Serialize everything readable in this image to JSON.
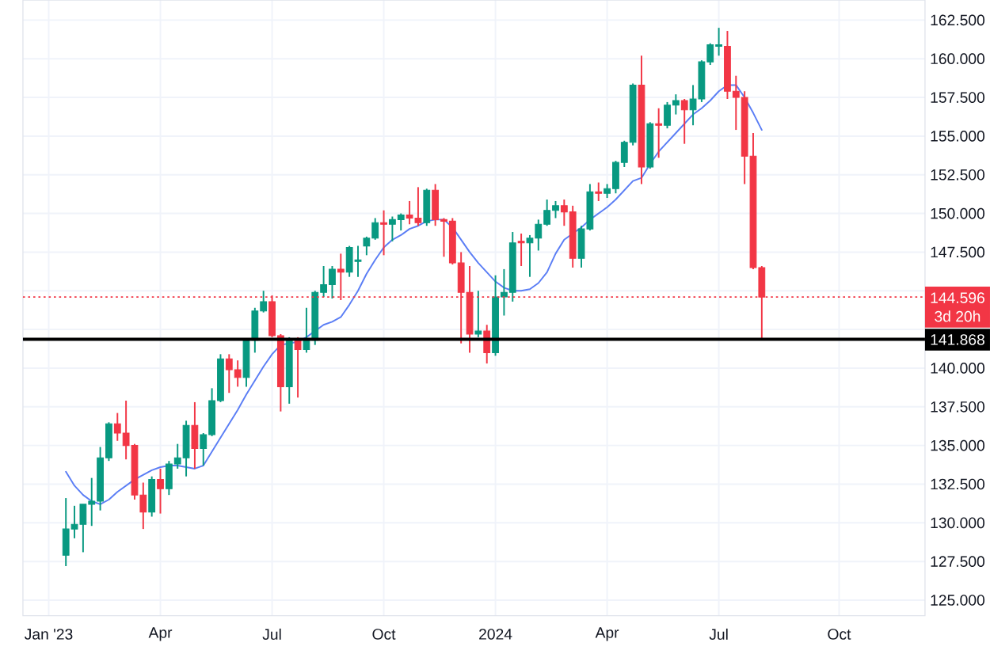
{
  "chart_data": {
    "type": "candlestick",
    "x": [
      "2023-01-16",
      "2023-01-23",
      "2023-01-30",
      "2023-02-06",
      "2023-02-13",
      "2023-02-20",
      "2023-02-27",
      "2023-03-06",
      "2023-03-13",
      "2023-03-20",
      "2023-03-27",
      "2023-04-03",
      "2023-04-10",
      "2023-04-17",
      "2023-04-24",
      "2023-05-01",
      "2023-05-08",
      "2023-05-15",
      "2023-05-22",
      "2023-05-29",
      "2023-06-05",
      "2023-06-12",
      "2023-06-19",
      "2023-06-26",
      "2023-07-03",
      "2023-07-10",
      "2023-07-17",
      "2023-07-24",
      "2023-07-31",
      "2023-08-07",
      "2023-08-14",
      "2023-08-21",
      "2023-08-28",
      "2023-09-04",
      "2023-09-11",
      "2023-09-18",
      "2023-09-25",
      "2023-10-02",
      "2023-10-09",
      "2023-10-16",
      "2023-10-23",
      "2023-10-30",
      "2023-11-06",
      "2023-11-13",
      "2023-11-20",
      "2023-11-27",
      "2023-12-04",
      "2023-12-11",
      "2023-12-18",
      "2023-12-25",
      "2024-01-01",
      "2024-01-08",
      "2024-01-15",
      "2024-01-22",
      "2024-01-29",
      "2024-02-05",
      "2024-02-12",
      "2024-02-19",
      "2024-02-26",
      "2024-03-04",
      "2024-03-11",
      "2024-03-18",
      "2024-03-25",
      "2024-04-01",
      "2024-04-08",
      "2024-04-15",
      "2024-04-22",
      "2024-04-29",
      "2024-05-06",
      "2024-05-13",
      "2024-05-20",
      "2024-05-27",
      "2024-06-03",
      "2024-06-10",
      "2024-06-17",
      "2024-06-24",
      "2024-07-01",
      "2024-07-08",
      "2024-07-15",
      "2024-07-22",
      "2024-07-29",
      "2024-08-05"
    ],
    "ohlc": [
      [
        127.9,
        131.6,
        127.2,
        129.6
      ],
      [
        129.6,
        131.1,
        129.0,
        129.9
      ],
      [
        129.9,
        131.2,
        128.1,
        131.2
      ],
      [
        131.2,
        132.9,
        129.8,
        131.4
      ],
      [
        131.4,
        134.9,
        130.8,
        134.2
      ],
      [
        134.2,
        136.5,
        134.0,
        136.4
      ],
      [
        136.4,
        137.1,
        135.3,
        135.8
      ],
      [
        135.8,
        137.9,
        134.1,
        135.0
      ],
      [
        135.0,
        135.1,
        131.5,
        131.8
      ],
      [
        131.8,
        132.6,
        129.6,
        130.7
      ],
      [
        130.7,
        133.0,
        130.4,
        132.8
      ],
      [
        132.8,
        133.5,
        130.6,
        132.2
      ],
      [
        132.2,
        134.0,
        131.8,
        133.8
      ],
      [
        133.8,
        135.1,
        133.5,
        134.2
      ],
      [
        134.2,
        136.6,
        133.0,
        136.3
      ],
      [
        136.3,
        137.8,
        133.5,
        134.8
      ],
      [
        134.8,
        135.8,
        133.7,
        135.7
      ],
      [
        135.7,
        138.7,
        135.6,
        137.9
      ],
      [
        137.9,
        140.9,
        137.8,
        140.6
      ],
      [
        140.6,
        140.9,
        138.4,
        139.9
      ],
      [
        139.9,
        140.5,
        138.8,
        139.4
      ],
      [
        139.4,
        141.9,
        138.8,
        141.8
      ],
      [
        141.8,
        143.9,
        141.0,
        143.7
      ],
      [
        143.7,
        145.0,
        143.6,
        144.3
      ],
      [
        144.3,
        144.7,
        142.0,
        142.1
      ],
      [
        142.1,
        142.2,
        137.2,
        138.8
      ],
      [
        138.8,
        142.0,
        137.7,
        141.8
      ],
      [
        141.8,
        142.0,
        138.1,
        141.2
      ],
      [
        141.2,
        143.9,
        141.0,
        141.8
      ],
      [
        141.8,
        145.0,
        141.5,
        144.9
      ],
      [
        144.9,
        146.6,
        144.6,
        145.4
      ],
      [
        145.4,
        146.6,
        144.5,
        146.4
      ],
      [
        146.4,
        147.4,
        144.4,
        146.2
      ],
      [
        146.2,
        147.9,
        145.9,
        147.8
      ],
      [
        146.9,
        147.9,
        145.9,
        147.0
      ],
      [
        147.9,
        148.5,
        147.3,
        148.4
      ],
      [
        148.4,
        149.7,
        148.3,
        149.4
      ],
      [
        149.4,
        150.2,
        147.3,
        149.3
      ],
      [
        149.3,
        149.8,
        148.2,
        149.6
      ],
      [
        149.6,
        150.0,
        148.9,
        149.9
      ],
      [
        149.9,
        150.8,
        149.3,
        149.7
      ],
      [
        149.7,
        151.7,
        149.2,
        149.4
      ],
      [
        149.4,
        151.6,
        149.2,
        151.5
      ],
      [
        151.5,
        151.9,
        149.2,
        149.6
      ],
      [
        149.6,
        149.7,
        147.2,
        149.5
      ],
      [
        149.5,
        149.7,
        146.7,
        146.8
      ],
      [
        146.8,
        147.5,
        141.6,
        144.9
      ],
      [
        144.9,
        146.6,
        141.0,
        142.2
      ],
      [
        142.2,
        145.0,
        142.0,
        142.4
      ],
      [
        142.4,
        142.8,
        140.3,
        141.0
      ],
      [
        141.0,
        146.0,
        140.8,
        144.6
      ],
      [
        144.6,
        146.4,
        143.4,
        144.9
      ],
      [
        144.9,
        148.8,
        144.3,
        148.1
      ],
      [
        148.2,
        148.7,
        146.6,
        148.1
      ],
      [
        148.1,
        148.6,
        145.9,
        148.4
      ],
      [
        148.4,
        149.6,
        147.6,
        149.3
      ],
      [
        149.3,
        150.9,
        149.2,
        150.2
      ],
      [
        150.2,
        150.8,
        149.7,
        150.5
      ],
      [
        150.5,
        150.9,
        149.2,
        150.1
      ],
      [
        150.1,
        150.5,
        146.5,
        147.1
      ],
      [
        147.1,
        149.2,
        146.5,
        149.0
      ],
      [
        149.0,
        151.9,
        148.9,
        151.4
      ],
      [
        151.4,
        152.0,
        150.8,
        151.3
      ],
      [
        151.3,
        151.9,
        151.0,
        151.6
      ],
      [
        151.6,
        153.4,
        151.3,
        153.3
      ],
      [
        153.3,
        154.7,
        153.0,
        154.6
      ],
      [
        154.6,
        158.4,
        154.4,
        158.3
      ],
      [
        158.3,
        160.2,
        151.9,
        153.0
      ],
      [
        153.0,
        155.9,
        152.9,
        155.8
      ],
      [
        155.8,
        156.8,
        153.6,
        155.7
      ],
      [
        155.7,
        157.2,
        155.5,
        157.0
      ],
      [
        157.0,
        157.7,
        156.4,
        157.3
      ],
      [
        157.3,
        157.4,
        154.5,
        156.7
      ],
      [
        156.7,
        158.3,
        155.7,
        157.4
      ],
      [
        157.4,
        159.9,
        157.2,
        159.8
      ],
      [
        159.8,
        161.0,
        159.6,
        160.9
      ],
      [
        160.8,
        162.0,
        160.2,
        160.9
      ],
      [
        160.8,
        161.8,
        157.4,
        157.9
      ],
      [
        157.9,
        158.9,
        155.4,
        157.5
      ],
      [
        157.5,
        157.9,
        151.9,
        153.7
      ],
      [
        153.7,
        155.2,
        146.4,
        146.5
      ],
      [
        146.5,
        146.6,
        141.9,
        144.596
      ]
    ],
    "colors": [
      "#089981",
      "#089981",
      "#089981",
      "#089981",
      "#089981",
      "#089981",
      "#f23645",
      "#f23645",
      "#f23645",
      "#f23645",
      "#089981",
      "#f23645",
      "#089981",
      "#089981",
      "#089981",
      "#f23645",
      "#089981",
      "#089981",
      "#089981",
      "#f23645",
      "#f23645",
      "#089981",
      "#089981",
      "#089981",
      "#f23645",
      "#f23645",
      "#089981",
      "#f23645",
      "#089981",
      "#089981",
      "#089981",
      "#089981",
      "#f23645",
      "#089981",
      "#089981",
      "#089981",
      "#089981",
      "#f23645",
      "#089981",
      "#089981",
      "#f23645",
      "#f23645",
      "#089981",
      "#f23645",
      "#f23645",
      "#f23645",
      "#f23645",
      "#f23645",
      "#089981",
      "#f23645",
      "#089981",
      "#089981",
      "#089981",
      "#f23645",
      "#089981",
      "#089981",
      "#089981",
      "#089981",
      "#f23645",
      "#f23645",
      "#089981",
      "#089981",
      "#f23645",
      "#089981",
      "#089981",
      "#089981",
      "#089981",
      "#f23645",
      "#089981",
      "#f23645",
      "#089981",
      "#089981",
      "#f23645",
      "#089981",
      "#089981",
      "#089981",
      "#089981",
      "#f23645",
      "#f23645",
      "#f23645",
      "#f23645",
      "#f23645"
    ],
    "series": [
      {
        "type": "line",
        "color": "#5b7ef5",
        "values": [
          133.3,
          132.4,
          131.8,
          131.4,
          131.2,
          131.5,
          132.0,
          132.4,
          132.8,
          133.1,
          133.4,
          133.6,
          133.7,
          133.7,
          133.6,
          133.5,
          133.7,
          134.6,
          135.5,
          136.4,
          137.3,
          138.3,
          139.2,
          140.1,
          140.9,
          141.5,
          141.6,
          141.7,
          142.0,
          142.4,
          142.8,
          143.0,
          143.3,
          144.1,
          145.0,
          146.1,
          147.0,
          147.8,
          148.3,
          148.6,
          149.0,
          149.2,
          149.5,
          149.6,
          149.6,
          149.1,
          148.3,
          147.5,
          146.8,
          146.2,
          145.6,
          145.2,
          145.0,
          145.0,
          145.1,
          145.5,
          146.2,
          147.4,
          148.3,
          148.7,
          149.1,
          149.6,
          150.0,
          150.4,
          150.9,
          151.5,
          152.1,
          152.3,
          153.2,
          154.0,
          154.6,
          155.2,
          155.8,
          156.4,
          156.8,
          157.3,
          157.9,
          158.3,
          158.3,
          157.5,
          156.5,
          155.4
        ]
      }
    ],
    "xlim": [
      "2022-12-12",
      "2024-12-16"
    ],
    "xticks": [
      {
        "value": "2023-01-02",
        "label": "Jan '23"
      },
      {
        "value": "2023-04-03",
        "label": "Apr"
      },
      {
        "value": "2023-07-03",
        "label": "Jul"
      },
      {
        "value": "2023-10-02",
        "label": "Oct"
      },
      {
        "value": "2024-01-01",
        "label": "2024"
      },
      {
        "value": "2024-04-01",
        "label": "Apr"
      },
      {
        "value": "2024-07-01",
        "label": "Jul"
      },
      {
        "value": "2024-10-07",
        "label": "Oct"
      }
    ],
    "ylim": [
      124.0,
      163.8
    ],
    "yticks": [
      {
        "value": 125,
        "label": "125.000"
      },
      {
        "value": 127.5,
        "label": "127.500"
      },
      {
        "value": 130,
        "label": "130.000"
      },
      {
        "value": 132.5,
        "label": "132.500"
      },
      {
        "value": 135,
        "label": "135.000"
      },
      {
        "value": 137.5,
        "label": "137.500"
      },
      {
        "value": 140,
        "label": "140.000"
      },
      {
        "value": 142.5,
        "label": null
      },
      {
        "value": 145,
        "label": null
      },
      {
        "value": 147.5,
        "label": "147.500"
      },
      {
        "value": 150,
        "label": "150.000"
      },
      {
        "value": 152.5,
        "label": "152.500"
      },
      {
        "value": 155,
        "label": "155.000"
      },
      {
        "value": 157.5,
        "label": "157.500"
      },
      {
        "value": 160,
        "label": "160.000"
      },
      {
        "value": 162.5,
        "label": "162.500"
      }
    ],
    "grid": true,
    "ref_lines": [
      {
        "axis": "y",
        "value": 144.596,
        "label": "144.596",
        "color": "#f23645",
        "line_style": "dotted"
      },
      {
        "axis": "y",
        "value": 141.868,
        "label": "141.868",
        "color": "#000000",
        "line_style": "solid"
      }
    ],
    "annotations": [
      "3d 20h"
    ]
  }
}
